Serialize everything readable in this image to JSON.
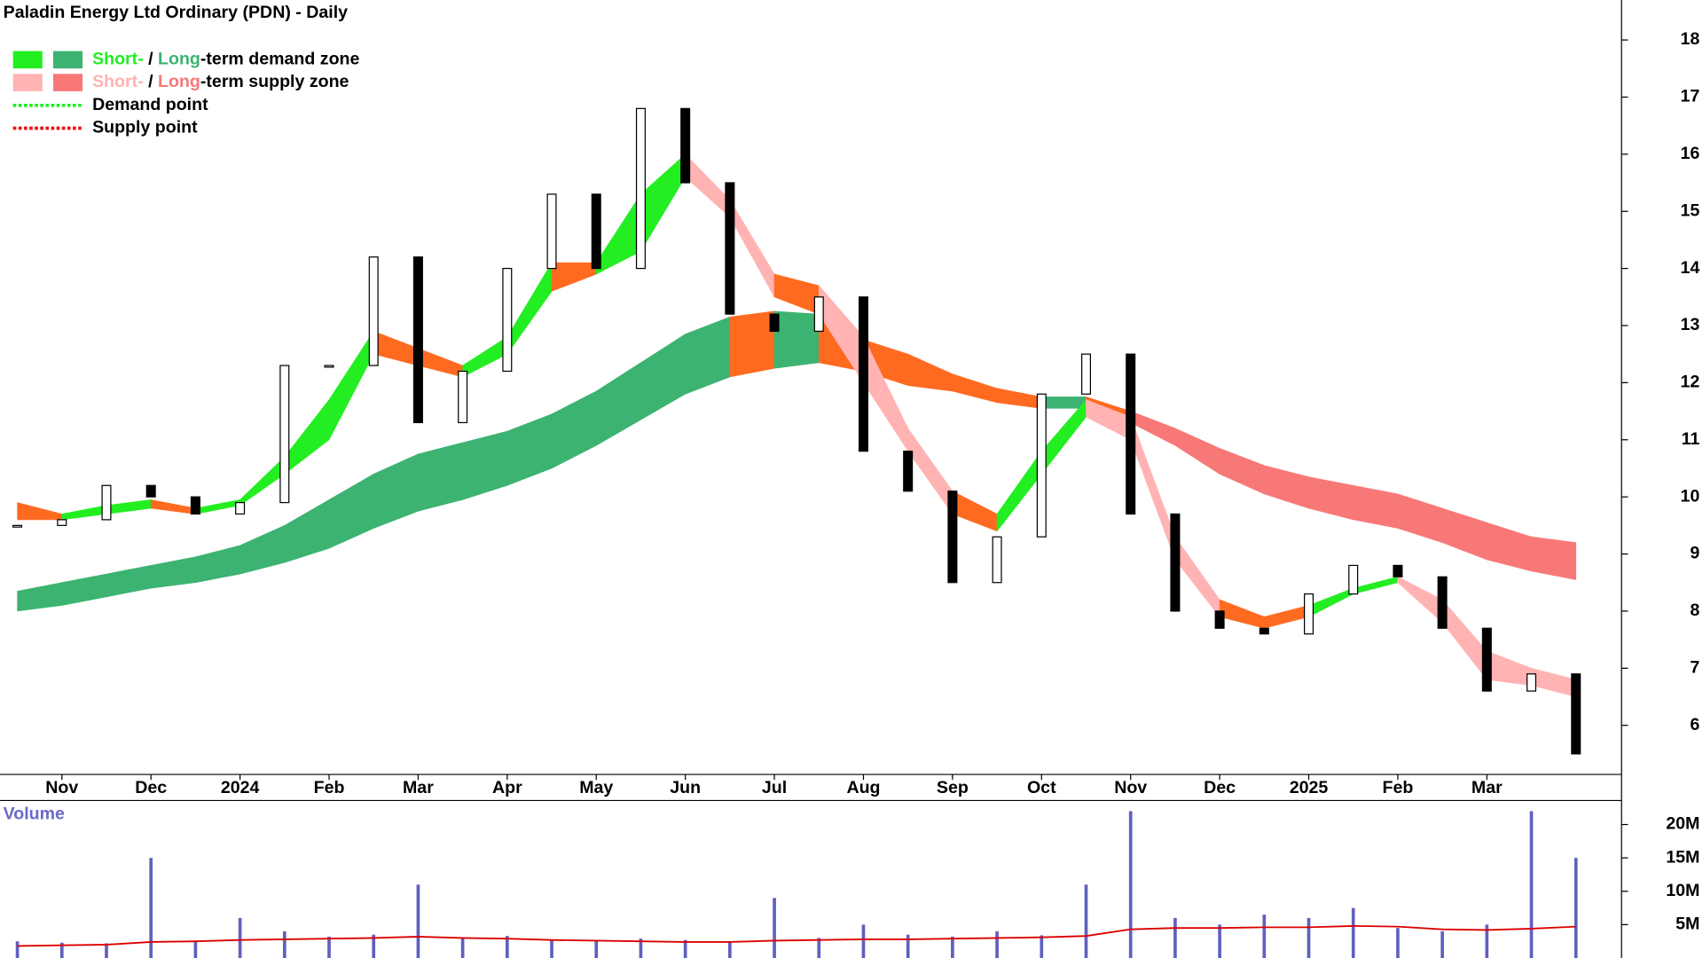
{
  "chart_data": {
    "type": "candlestick",
    "title": "Paladin Energy Ltd Ordinary (PDN) - Daily",
    "categories": [
      null,
      "Nov",
      null,
      "Dec",
      null,
      "2024",
      null,
      "Feb",
      null,
      "Mar",
      null,
      "Apr",
      null,
      "May",
      null,
      "Jun",
      null,
      "Jul",
      null,
      "Aug",
      null,
      "Sep",
      null,
      "Oct",
      null,
      "Nov",
      null,
      "Dec",
      null,
      "2025",
      null,
      "Feb",
      null,
      "Mar",
      null,
      null
    ],
    "values": [
      9.5,
      9.6,
      10.2,
      10.0,
      9.7,
      9.9,
      12.3,
      12.3,
      14.2,
      11.3,
      12.2,
      14.0,
      15.3,
      14.0,
      16.8,
      15.5,
      13.2,
      12.9,
      13.5,
      10.8,
      10.1,
      8.5,
      9.3,
      11.8,
      12.5,
      9.7,
      8.0,
      7.7,
      7.6,
      8.3,
      8.8,
      8.6,
      7.7,
      6.6,
      6.9,
      5.5
    ],
    "up_color": "#ffffff",
    "down_color": "#000000",
    "long_zone": {
      "upper": [
        8.35,
        8.5,
        8.65,
        8.8,
        8.95,
        9.15,
        9.5,
        9.95,
        10.4,
        10.75,
        10.95,
        11.15,
        11.45,
        11.85,
        12.35,
        12.85,
        13.15,
        13.25,
        13.2,
        12.75,
        12.5,
        12.15,
        11.9,
        11.75,
        11.75,
        11.5,
        11.2,
        10.85,
        10.55,
        10.35,
        10.2,
        10.05,
        9.8,
        9.55,
        9.3,
        9.2
      ],
      "lower": [
        8.0,
        8.1,
        8.25,
        8.4,
        8.5,
        8.65,
        8.85,
        9.1,
        9.45,
        9.75,
        9.95,
        10.2,
        10.5,
        10.9,
        11.35,
        11.8,
        12.1,
        12.25,
        12.35,
        12.2,
        11.95,
        11.85,
        11.65,
        11.55,
        11.55,
        11.3,
        10.9,
        10.4,
        10.05,
        9.8,
        9.6,
        9.45,
        9.2,
        8.9,
        8.7,
        8.55
      ],
      "colors": [
        "#3cb371",
        "#3cb371",
        "#3cb371",
        "#3cb371",
        "#3cb371",
        "#3cb371",
        "#3cb371",
        "#3cb371",
        "#3cb371",
        "#3cb371",
        "#3cb371",
        "#3cb371",
        "#3cb371",
        "#3cb371",
        "#3cb371",
        "#3cb371",
        "#ff6a21",
        "#3cb371",
        "#ff6a21",
        "#ff6a21",
        "#ff6a21",
        "#ff6a21",
        "#ff6a21",
        "#3cb371",
        "#ff6a21",
        "#f87878",
        "#f87878",
        "#f87878",
        "#f87878",
        "#f87878",
        "#f87878",
        "#f87878",
        "#f87878",
        "#f87878",
        "#f87878"
      ]
    },
    "short_zone": {
      "upper": [
        9.9,
        9.7,
        9.85,
        9.95,
        9.8,
        9.95,
        10.7,
        11.7,
        12.9,
        12.6,
        12.3,
        12.8,
        14.1,
        14.1,
        15.3,
        16.0,
        15.2,
        13.9,
        13.7,
        12.8,
        11.2,
        10.1,
        9.7,
        10.8,
        11.7,
        11.4,
        9.3,
        8.2,
        7.9,
        8.1,
        8.4,
        8.6,
        8.2,
        7.3,
        7.0,
        6.8
      ],
      "lower": [
        9.6,
        9.6,
        9.7,
        9.8,
        9.7,
        9.85,
        10.4,
        11.0,
        12.5,
        12.3,
        12.1,
        12.5,
        13.6,
        13.9,
        14.3,
        15.6,
        14.9,
        13.5,
        13.2,
        12.0,
        10.8,
        9.7,
        9.4,
        10.4,
        11.4,
        11.0,
        8.9,
        7.9,
        7.7,
        7.9,
        8.3,
        8.5,
        7.8,
        6.8,
        6.7,
        6.5
      ],
      "colors": [
        "#ff6a21",
        "#22ee22",
        "#22ee22",
        "#ff6a21",
        "#22ee22",
        "#22ee22",
        "#22ee22",
        "#22ee22",
        "#ff6a21",
        "#ff6a21",
        "#22ee22",
        "#22ee22",
        "#ff6a21",
        "#22ee22",
        "#22ee22",
        "#ffb3b3",
        "#ffb3b3",
        "#ff6a21",
        "#ffb3b3",
        "#ffb3b3",
        "#ffb3b3",
        "#ff6a21",
        "#22ee22",
        "#22ee22",
        "#ffb3b3",
        "#ffb3b3",
        "#ffb3b3",
        "#ff6a21",
        "#ff6a21",
        "#22ee22",
        "#22ee22",
        "#ffb3b3",
        "#ffb3b3",
        "#ffb3b3",
        "#ffb3b3"
      ]
    },
    "ylim": [
      5.14,
      18.7
    ],
    "yticks": [
      6,
      7,
      8,
      9,
      10,
      11,
      12,
      13,
      14,
      15,
      16,
      17,
      18
    ],
    "legend_rows": [
      {
        "texts": [
          "Short-",
          " / ",
          "Long",
          "-term demand zone"
        ],
        "colors": [
          "#22ee22",
          "#000000",
          "#3cb371",
          "#000000"
        ],
        "swatches": [
          "#22ee22",
          "#3cb371"
        ]
      },
      {
        "texts": [
          "Short-",
          " / ",
          "Long",
          "-term supply zone"
        ],
        "colors": [
          "#ffb3b3",
          "#000000",
          "#f87878",
          "#000000"
        ],
        "swatches": [
          "#ffb3b3",
          "#f87878"
        ]
      },
      {
        "texts": [
          "Demand point"
        ],
        "colors": [
          "#000000"
        ],
        "dotted": "#22ee22"
      },
      {
        "texts": [
          "Supply point"
        ],
        "colors": [
          "#000000"
        ],
        "dotted": "#ee1111"
      }
    ],
    "volume": {
      "label": "Volume",
      "color": "#6060c0",
      "values": [
        2500000,
        2300000,
        2200000,
        15000000,
        2400000,
        6000000,
        4000000,
        3200000,
        3500000,
        11000000,
        3000000,
        3300000,
        2800000,
        2600000,
        2900000,
        2700000,
        2500000,
        9000000,
        3000000,
        5000000,
        3500000,
        3200000,
        4000000,
        3400000,
        11000000,
        22000000,
        6000000,
        5000000,
        6500000,
        6000000,
        7500000,
        4500000,
        4000000,
        5000000,
        22000000,
        15000000
      ],
      "average": [
        1800000,
        1900000,
        2000000,
        2400000,
        2500000,
        2700000,
        2800000,
        2900000,
        3000000,
        3200000,
        3000000,
        2900000,
        2700000,
        2600000,
        2500000,
        2400000,
        2400000,
        2600000,
        2700000,
        2800000,
        2800000,
        2900000,
        3000000,
        3100000,
        3300000,
        4300000,
        4500000,
        4500000,
        4600000,
        4600000,
        4800000,
        4700000,
        4300000,
        4200000,
        4400000,
        4700000
      ],
      "average_color": "#dd0000",
      "ylim": [
        0,
        23600000
      ],
      "yticks": [
        {
          "value": 5000000,
          "label": "5M"
        },
        {
          "value": 10000000,
          "label": "10M"
        },
        {
          "value": 15000000,
          "label": "15M"
        },
        {
          "value": 20000000,
          "label": "20M"
        }
      ]
    }
  }
}
